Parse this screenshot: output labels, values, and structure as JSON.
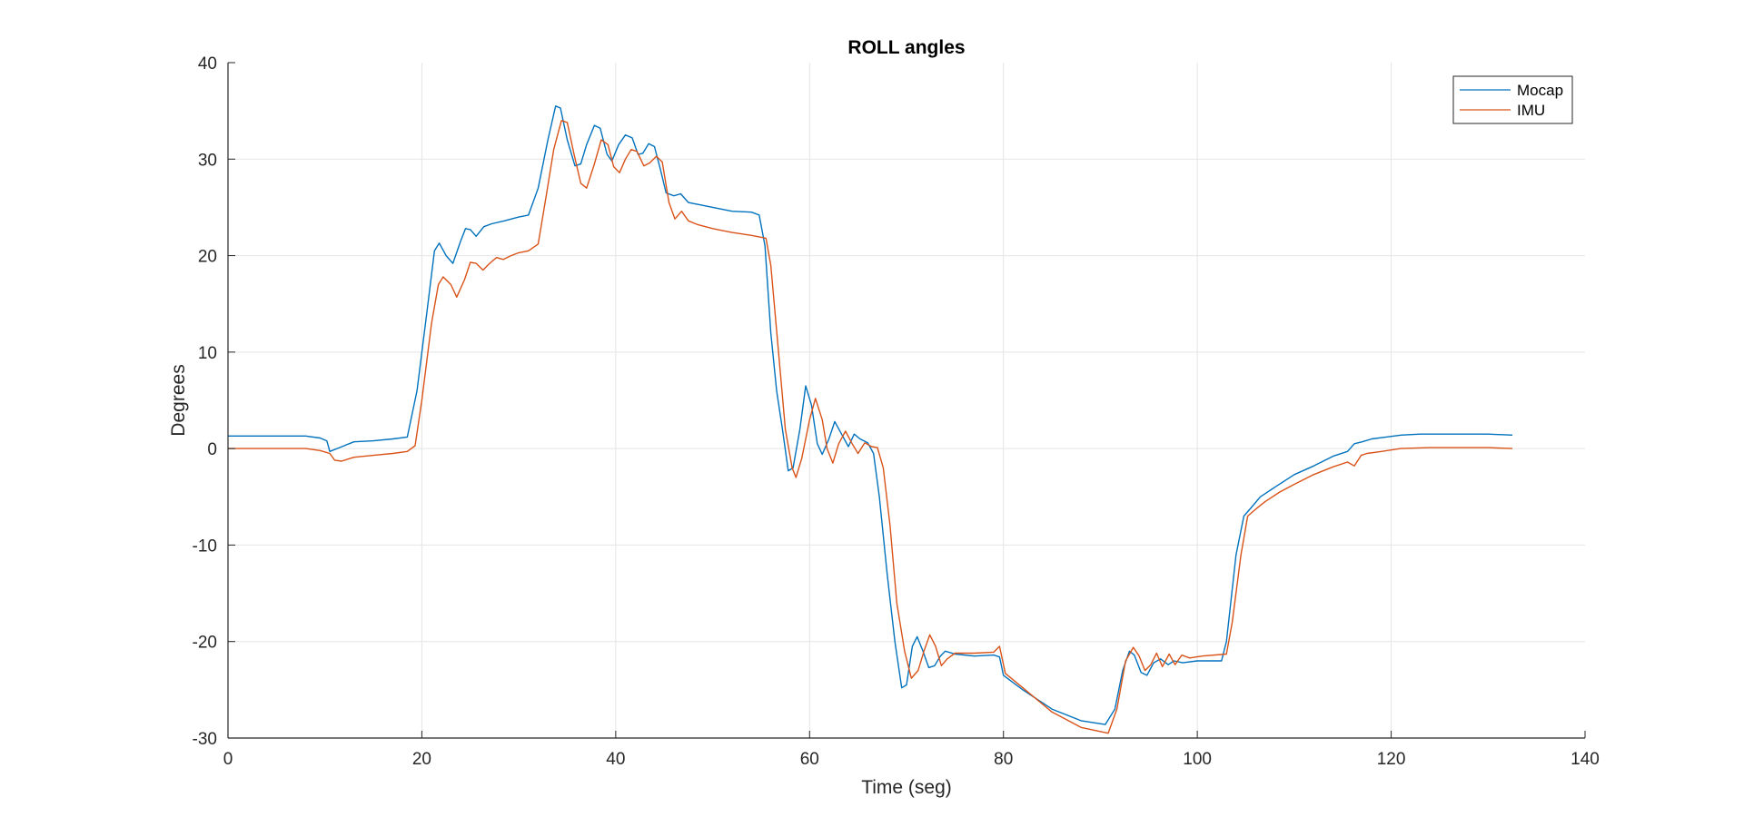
{
  "chart_data": {
    "type": "line",
    "title": "ROLL angles",
    "xlabel": "Time (seg)",
    "ylabel": "Degrees",
    "xlim": [
      0,
      140
    ],
    "ylim": [
      -30,
      40
    ],
    "xticks": [
      "0",
      "20",
      "40",
      "60",
      "80",
      "100",
      "120",
      "140"
    ],
    "yticks": [
      "40",
      "30",
      "20",
      "10",
      "0",
      "-10",
      "-20",
      "-30"
    ],
    "grid": true,
    "legend_position": "top-right",
    "series": [
      {
        "name": "Mocap",
        "color": "#0072BD",
        "points": [
          [
            0,
            1.3
          ],
          [
            5,
            1.3
          ],
          [
            8,
            1.3
          ],
          [
            9.5,
            1.1
          ],
          [
            10.2,
            0.8
          ],
          [
            10.5,
            -0.3
          ],
          [
            11.5,
            0.1
          ],
          [
            13,
            0.7
          ],
          [
            15,
            0.8
          ],
          [
            17,
            1.0
          ],
          [
            18.5,
            1.2
          ],
          [
            19.5,
            6
          ],
          [
            20.5,
            14
          ],
          [
            21.3,
            20.5
          ],
          [
            21.8,
            21.3
          ],
          [
            22.5,
            20
          ],
          [
            23.2,
            19.2
          ],
          [
            24,
            21.5
          ],
          [
            24.5,
            22.8
          ],
          [
            25,
            22.7
          ],
          [
            25.6,
            22
          ],
          [
            26.4,
            23
          ],
          [
            27.2,
            23.3
          ],
          [
            28.5,
            23.6
          ],
          [
            30,
            24
          ],
          [
            31,
            24.2
          ],
          [
            32,
            27
          ],
          [
            33,
            32
          ],
          [
            33.8,
            35.5
          ],
          [
            34.3,
            35.3
          ],
          [
            35,
            32
          ],
          [
            35.8,
            29.3
          ],
          [
            36.4,
            29.5
          ],
          [
            37,
            31.5
          ],
          [
            37.8,
            33.5
          ],
          [
            38.4,
            33.2
          ],
          [
            39.1,
            30.5
          ],
          [
            39.6,
            29.8
          ],
          [
            40.3,
            31.5
          ],
          [
            41,
            32.5
          ],
          [
            41.7,
            32.2
          ],
          [
            42.3,
            30.5
          ],
          [
            42.8,
            30.6
          ],
          [
            43.4,
            31.6
          ],
          [
            44,
            31.3
          ],
          [
            44.6,
            29
          ],
          [
            45.2,
            26.5
          ],
          [
            46,
            26.2
          ],
          [
            46.7,
            26.4
          ],
          [
            47.5,
            25.5
          ],
          [
            48.5,
            25.3
          ],
          [
            50,
            25
          ],
          [
            52,
            24.6
          ],
          [
            54,
            24.5
          ],
          [
            54.8,
            24.2
          ],
          [
            55.4,
            21
          ],
          [
            56,
            12
          ],
          [
            56.6,
            6
          ],
          [
            57.2,
            2
          ],
          [
            57.8,
            -2.3
          ],
          [
            58.3,
            -2
          ],
          [
            59,
            2
          ],
          [
            59.6,
            6.5
          ],
          [
            60.2,
            4.5
          ],
          [
            60.8,
            0.5
          ],
          [
            61.3,
            -0.6
          ],
          [
            62,
            1
          ],
          [
            62.6,
            2.8
          ],
          [
            63.3,
            1.5
          ],
          [
            64,
            0.2
          ],
          [
            64.6,
            1.5
          ],
          [
            65.2,
            1
          ],
          [
            66,
            0.6
          ],
          [
            66.6,
            -0.5
          ],
          [
            67.2,
            -5
          ],
          [
            68,
            -13
          ],
          [
            68.8,
            -20
          ],
          [
            69.5,
            -24.8
          ],
          [
            70,
            -24.5
          ],
          [
            70.6,
            -20.5
          ],
          [
            71.1,
            -19.5
          ],
          [
            71.7,
            -21
          ],
          [
            72.3,
            -22.7
          ],
          [
            72.9,
            -22.5
          ],
          [
            73.5,
            -21.5
          ],
          [
            74,
            -21
          ],
          [
            75,
            -21.3
          ],
          [
            77,
            -21.5
          ],
          [
            79,
            -21.4
          ],
          [
            79.6,
            -21.6
          ],
          [
            80,
            -23.5
          ],
          [
            82,
            -25
          ],
          [
            85,
            -27
          ],
          [
            88,
            -28.2
          ],
          [
            90.5,
            -28.6
          ],
          [
            91.5,
            -27
          ],
          [
            92.3,
            -23
          ],
          [
            93,
            -21
          ],
          [
            93.5,
            -21.4
          ],
          [
            94.2,
            -23.2
          ],
          [
            94.8,
            -23.5
          ],
          [
            95.5,
            -22.2
          ],
          [
            96.2,
            -21.8
          ],
          [
            97,
            -22.4
          ],
          [
            97.6,
            -22
          ],
          [
            98.5,
            -22.2
          ],
          [
            100,
            -22
          ],
          [
            102.5,
            -22
          ],
          [
            103,
            -20
          ],
          [
            104,
            -11
          ],
          [
            104.8,
            -7
          ],
          [
            105.5,
            -6.2
          ],
          [
            106.5,
            -5
          ],
          [
            108,
            -4
          ],
          [
            110,
            -2.7
          ],
          [
            112,
            -1.8
          ],
          [
            114,
            -0.8
          ],
          [
            115.5,
            -0.3
          ],
          [
            116.2,
            0.5
          ],
          [
            117,
            0.7
          ],
          [
            118,
            1
          ],
          [
            119.5,
            1.2
          ],
          [
            121,
            1.4
          ],
          [
            123,
            1.5
          ],
          [
            127,
            1.5
          ],
          [
            130,
            1.5
          ],
          [
            132.5,
            1.4
          ]
        ]
      },
      {
        "name": "IMU",
        "color": "#D95319",
        "points": [
          [
            0,
            0
          ],
          [
            5,
            0
          ],
          [
            8,
            0
          ],
          [
            9.5,
            -0.2
          ],
          [
            10.5,
            -0.5
          ],
          [
            11,
            -1.2
          ],
          [
            11.7,
            -1.3
          ],
          [
            13,
            -0.9
          ],
          [
            15,
            -0.7
          ],
          [
            17,
            -0.5
          ],
          [
            18.5,
            -0.3
          ],
          [
            19.3,
            0.3
          ],
          [
            20,
            5
          ],
          [
            21,
            13
          ],
          [
            21.7,
            17
          ],
          [
            22.2,
            17.8
          ],
          [
            23,
            17
          ],
          [
            23.6,
            15.7
          ],
          [
            24.4,
            17.5
          ],
          [
            25,
            19.3
          ],
          [
            25.6,
            19.2
          ],
          [
            26.3,
            18.5
          ],
          [
            27,
            19.2
          ],
          [
            27.7,
            19.8
          ],
          [
            28.4,
            19.6
          ],
          [
            29.2,
            20
          ],
          [
            30,
            20.3
          ],
          [
            31,
            20.5
          ],
          [
            32,
            21.2
          ],
          [
            32.8,
            26
          ],
          [
            33.6,
            31
          ],
          [
            34.4,
            34
          ],
          [
            35,
            33.8
          ],
          [
            35.7,
            30.5
          ],
          [
            36.4,
            27.5
          ],
          [
            37,
            27
          ],
          [
            37.8,
            29.5
          ],
          [
            38.5,
            32
          ],
          [
            39.2,
            31.5
          ],
          [
            39.8,
            29.2
          ],
          [
            40.4,
            28.6
          ],
          [
            41,
            30
          ],
          [
            41.6,
            31
          ],
          [
            42.2,
            30.8
          ],
          [
            42.9,
            29.3
          ],
          [
            43.5,
            29.6
          ],
          [
            44.2,
            30.3
          ],
          [
            44.8,
            29.7
          ],
          [
            45.5,
            25.5
          ],
          [
            46.1,
            23.8
          ],
          [
            46.8,
            24.6
          ],
          [
            47.5,
            23.6
          ],
          [
            48.5,
            23.2
          ],
          [
            50,
            22.8
          ],
          [
            52,
            22.4
          ],
          [
            54,
            22.1
          ],
          [
            55.5,
            21.8
          ],
          [
            56,
            19
          ],
          [
            56.8,
            10
          ],
          [
            57.5,
            2
          ],
          [
            58.2,
            -2
          ],
          [
            58.6,
            -3
          ],
          [
            59.2,
            -1
          ],
          [
            60,
            3
          ],
          [
            60.6,
            5.2
          ],
          [
            61.3,
            3
          ],
          [
            61.8,
            0
          ],
          [
            62.4,
            -1.5
          ],
          [
            63,
            0.5
          ],
          [
            63.7,
            1.8
          ],
          [
            64.4,
            0.5
          ],
          [
            65,
            -0.5
          ],
          [
            65.7,
            0.6
          ],
          [
            66.4,
            0.2
          ],
          [
            67,
            0.1
          ],
          [
            67.6,
            -2
          ],
          [
            68.3,
            -8
          ],
          [
            69,
            -16
          ],
          [
            69.8,
            -21
          ],
          [
            70.5,
            -23.8
          ],
          [
            71.2,
            -23
          ],
          [
            71.8,
            -21
          ],
          [
            72.4,
            -19.3
          ],
          [
            73,
            -20.5
          ],
          [
            73.6,
            -22.5
          ],
          [
            74.2,
            -21.8
          ],
          [
            75,
            -21.2
          ],
          [
            77,
            -21.2
          ],
          [
            79,
            -21.1
          ],
          [
            79.6,
            -20.5
          ],
          [
            80.2,
            -23.3
          ],
          [
            82,
            -24.8
          ],
          [
            85,
            -27.3
          ],
          [
            88,
            -28.9
          ],
          [
            90.8,
            -29.5
          ],
          [
            91.7,
            -27
          ],
          [
            92.6,
            -22
          ],
          [
            93.4,
            -20.6
          ],
          [
            94,
            -21.5
          ],
          [
            94.6,
            -23
          ],
          [
            95.2,
            -22.4
          ],
          [
            95.8,
            -21.2
          ],
          [
            96.4,
            -22.6
          ],
          [
            97.1,
            -21.3
          ],
          [
            97.7,
            -22.4
          ],
          [
            98.4,
            -21.4
          ],
          [
            99.2,
            -21.7
          ],
          [
            100.5,
            -21.5
          ],
          [
            103,
            -21.3
          ],
          [
            103.6,
            -18
          ],
          [
            104.5,
            -11
          ],
          [
            105.2,
            -7
          ],
          [
            106,
            -6.3
          ],
          [
            107,
            -5.5
          ],
          [
            108.5,
            -4.5
          ],
          [
            110,
            -3.7
          ],
          [
            112,
            -2.7
          ],
          [
            114,
            -1.9
          ],
          [
            115.5,
            -1.4
          ],
          [
            116.2,
            -1.8
          ],
          [
            116.9,
            -0.7
          ],
          [
            117.5,
            -0.5
          ],
          [
            119,
            -0.3
          ],
          [
            121,
            0
          ],
          [
            124,
            0.1
          ],
          [
            127,
            0.1
          ],
          [
            130,
            0.1
          ],
          [
            132.5,
            0
          ]
        ]
      }
    ]
  }
}
